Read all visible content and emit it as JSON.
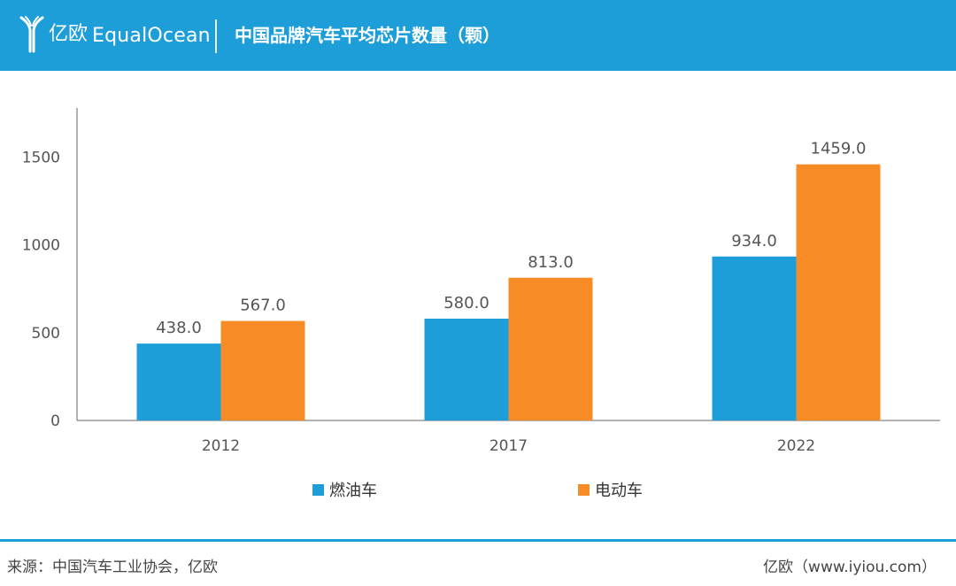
{
  "header": {
    "brand_cn": "亿欧",
    "brand_en": "EqualOcean",
    "title": "中国品牌汽车平均芯片数量（颗）"
  },
  "chart_data": {
    "type": "bar",
    "title": "中国品牌汽车平均芯片数量（颗）",
    "categories": [
      "2012",
      "2017",
      "2022"
    ],
    "series": [
      {
        "name": "燃油车",
        "values": [
          438.0,
          580.0,
          934.0
        ],
        "color": "#1e9ed8"
      },
      {
        "name": "电动车",
        "values": [
          567.0,
          813.0,
          1459.0
        ],
        "color": "#f78c26"
      }
    ],
    "data_labels": [
      [
        "438.0",
        "580.0",
        "934.0"
      ],
      [
        "567.0",
        "813.0",
        "1459.0"
      ]
    ],
    "yticks": [
      0,
      500,
      1000,
      1500
    ],
    "ylim": [
      0,
      1780
    ],
    "grid": false,
    "legend_position": "bottom"
  },
  "footer": {
    "source": "来源：中国汽车工业协会，亿欧",
    "site": "亿欧（www.iyiou.com）"
  }
}
